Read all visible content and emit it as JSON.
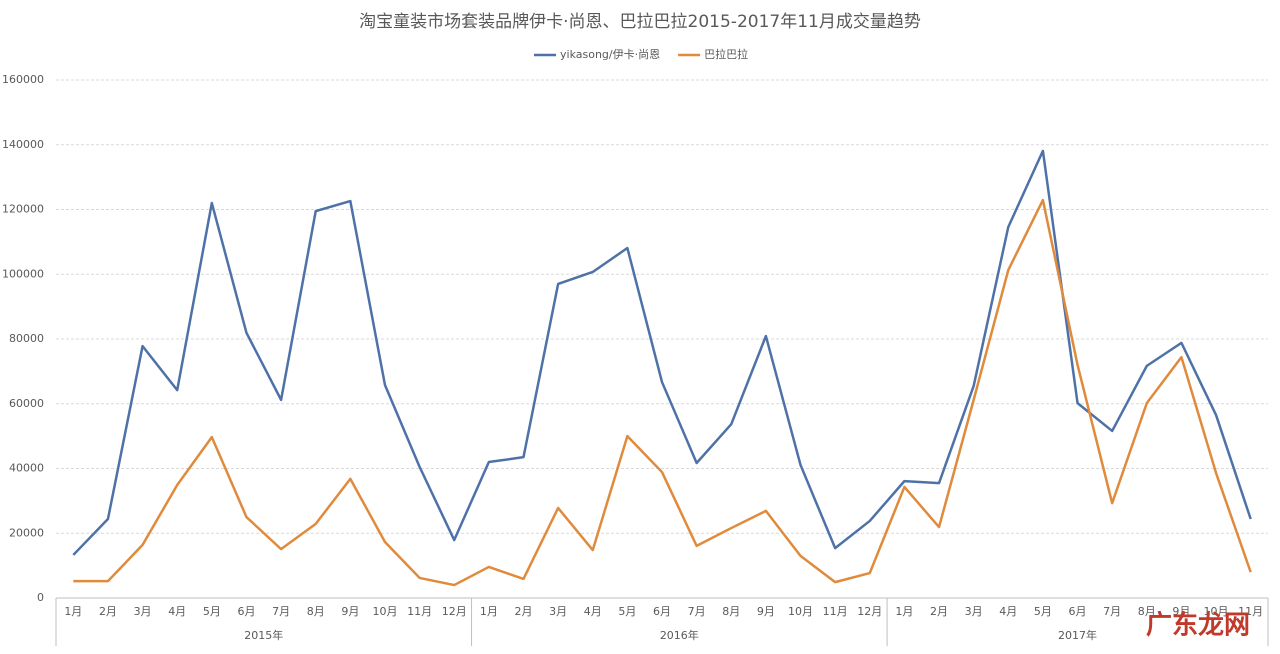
{
  "chart_data": {
    "type": "line",
    "title": "淘宝童装市场套装品牌伊卡·尚恩、巴拉巴拉2015-2017年11月成交量趋势",
    "categories": [
      "1月",
      "2月",
      "3月",
      "4月",
      "5月",
      "6月",
      "7月",
      "8月",
      "9月",
      "10月",
      "11月",
      "12月",
      "1月",
      "2月",
      "3月",
      "4月",
      "5月",
      "6月",
      "7月",
      "8月",
      "9月",
      "10月",
      "11月",
      "12月",
      "1月",
      "2月",
      "3月",
      "4月",
      "5月",
      "6月",
      "7月",
      "8月",
      "9月",
      "10月",
      "11月"
    ],
    "x_groups": [
      {
        "label": "2015年",
        "span": 12
      },
      {
        "label": "2016年",
        "span": 12
      },
      {
        "label": "2017年",
        "span": 11
      }
    ],
    "series": [
      {
        "name": "yikasong/伊卡·尚恩",
        "color": "#4e72a8",
        "values": [
          13300,
          24400,
          77800,
          64200,
          122000,
          81900,
          61200,
          119500,
          122600,
          65800,
          40500,
          17900,
          42000,
          43500,
          97000,
          100700,
          108100,
          66700,
          41700,
          53700,
          80900,
          41100,
          15400,
          23800,
          36100,
          35500,
          65500,
          114600,
          138100,
          60200,
          51600,
          71700,
          78800,
          56500,
          24400
        ]
      },
      {
        "name": "巴拉巴拉",
        "color": "#e08a3c",
        "values": [
          5200,
          5200,
          16400,
          34900,
          49700,
          25000,
          15100,
          22900,
          36800,
          17300,
          6200,
          4000,
          9600,
          5900,
          27800,
          14800,
          50000,
          38900,
          16100,
          21600,
          26900,
          13000,
          4900,
          7700,
          34300,
          21900,
          61200,
          101300,
          122900,
          72000,
          29300,
          60200,
          74400,
          38600,
          8000
        ]
      }
    ],
    "ylim": [
      0,
      160000
    ],
    "yticks": [
      0,
      20000,
      40000,
      60000,
      80000,
      100000,
      120000,
      140000,
      160000
    ],
    "grid": true,
    "legend": "top",
    "watermark": "广东龙网"
  }
}
